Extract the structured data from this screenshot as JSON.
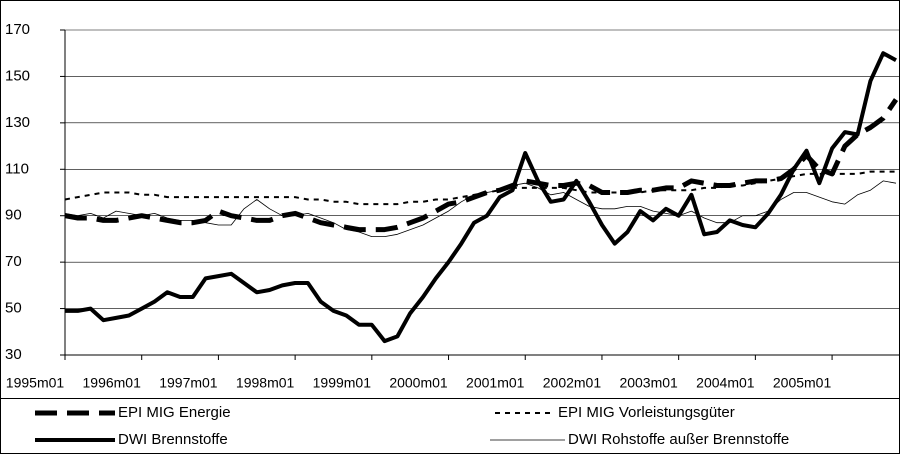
{
  "chart_data": {
    "type": "line",
    "categories": [
      "1995m01",
      null,
      null,
      null,
      null,
      null,
      "1996m01",
      null,
      null,
      null,
      null,
      null,
      "1997m01",
      null,
      null,
      null,
      null,
      null,
      "1998m01",
      null,
      null,
      null,
      null,
      null,
      "1999m01",
      null,
      null,
      null,
      null,
      null,
      "2000m01",
      null,
      null,
      null,
      null,
      null,
      "2001m01",
      null,
      null,
      null,
      null,
      null,
      "2002m01",
      null,
      null,
      null,
      null,
      null,
      "2003m01",
      null,
      null,
      null,
      null,
      null,
      "2004m01",
      null,
      null,
      null,
      null,
      null,
      "2005m01",
      null,
      null,
      null,
      null,
      null
    ],
    "series": [
      {
        "name": "EPI MIG Energie",
        "color": "#000000",
        "style": "dashed",
        "values": [
          90,
          89,
          89,
          88,
          88,
          89,
          90,
          89,
          88,
          87,
          87,
          88,
          92,
          90,
          89,
          88,
          88,
          90,
          91,
          89,
          87,
          86,
          85,
          84,
          84,
          84,
          85,
          87,
          89,
          92,
          95,
          96,
          98,
          100,
          101,
          103,
          105,
          104,
          103,
          103,
          104,
          103,
          100,
          100,
          100,
          101,
          101,
          102,
          102,
          105,
          104,
          103,
          103,
          104,
          105,
          105,
          106,
          110,
          116,
          110,
          108,
          120,
          125,
          128,
          132,
          140
        ]
      },
      {
        "name": "EPI MIG Vorleistungsgüter",
        "color": "#000000",
        "style": "dotted",
        "values": [
          97,
          98,
          99,
          100,
          100,
          100,
          99,
          99,
          98,
          98,
          98,
          98,
          98,
          98,
          98,
          98,
          98,
          98,
          98,
          97,
          97,
          96,
          96,
          95,
          95,
          95,
          95,
          96,
          96,
          97,
          97,
          98,
          99,
          100,
          101,
          102,
          102,
          102,
          102,
          102,
          101,
          100,
          100,
          100,
          100,
          100,
          101,
          101,
          101,
          101,
          102,
          102,
          103,
          103,
          104,
          105,
          106,
          107,
          108,
          108,
          108,
          108,
          108,
          109,
          109,
          109
        ]
      },
      {
        "name": "DWI Brennstoffe",
        "color": "#000000",
        "style": "thick",
        "values": [
          49,
          49,
          50,
          45,
          46,
          47,
          50,
          53,
          57,
          55,
          55,
          63,
          64,
          65,
          61,
          57,
          58,
          60,
          61,
          61,
          53,
          49,
          47,
          43,
          43,
          36,
          38,
          48,
          55,
          63,
          70,
          78,
          87,
          90,
          98,
          101,
          117,
          105,
          96,
          97,
          105,
          96,
          86,
          78,
          83,
          92,
          88,
          93,
          90,
          99,
          82,
          83,
          88,
          86,
          85,
          91,
          99,
          110,
          118,
          104,
          119,
          126,
          125,
          148,
          160,
          157
        ]
      },
      {
        "name": "DWI Rohstoffe außer Brennstoffe",
        "color": "#000000",
        "style": "thin",
        "values": [
          91,
          90,
          91,
          89,
          92,
          91,
          90,
          91,
          89,
          88,
          88,
          87,
          86,
          86,
          93,
          97,
          93,
          90,
          90,
          91,
          89,
          87,
          84,
          83,
          81,
          81,
          82,
          84,
          86,
          89,
          92,
          96,
          99,
          100,
          101,
          103,
          104,
          102,
          99,
          100,
          97,
          94,
          93,
          93,
          94,
          94,
          92,
          91,
          90,
          92,
          89,
          87,
          87,
          90,
          90,
          92,
          97,
          100,
          100,
          98,
          96,
          95,
          99,
          101,
          105,
          104
        ]
      }
    ],
    "ylim": [
      30,
      170
    ],
    "yticks": [
      30,
      50,
      70,
      90,
      110,
      130,
      150,
      170
    ],
    "grid": true,
    "legend": "bottom"
  }
}
